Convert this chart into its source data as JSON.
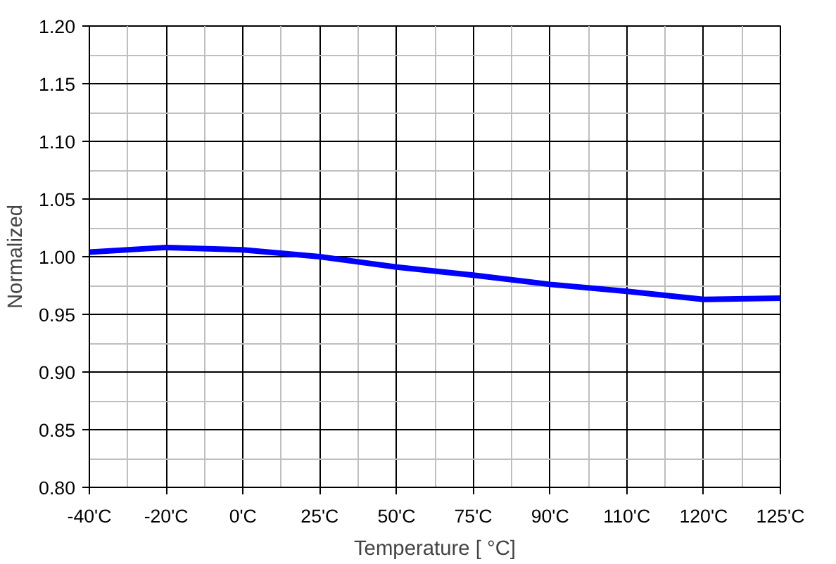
{
  "chart_data": {
    "type": "line",
    "xlabel": "Temperature [ °C]",
    "ylabel": "Normalized",
    "categories": [
      "-40'C",
      "-20'C",
      "0'C",
      "25'C",
      "50'C",
      "75'C",
      "90'C",
      "110'C",
      "120'C",
      "125'C"
    ],
    "series": [
      {
        "color": "#0000ff",
        "values": [
          1.004,
          1.008,
          1.006,
          1.0,
          0.991,
          0.984,
          0.976,
          0.97,
          0.963,
          0.964
        ]
      }
    ],
    "ylim": [
      0.8,
      1.2
    ],
    "yticks": [
      {
        "value": 0.8,
        "label": "0.80"
      },
      {
        "value": 0.85,
        "label": "0.85"
      },
      {
        "value": 0.9,
        "label": "0.90"
      },
      {
        "value": 0.95,
        "label": "0.95"
      },
      {
        "value": 1.0,
        "label": "1.00"
      },
      {
        "value": 1.05,
        "label": "1.05"
      },
      {
        "value": 1.1,
        "label": "1.10"
      },
      {
        "value": 1.15,
        "label": "1.15"
      },
      {
        "value": 1.2,
        "label": "1.20"
      }
    ],
    "grid": true,
    "marker": "none",
    "line_style": "solid"
  }
}
